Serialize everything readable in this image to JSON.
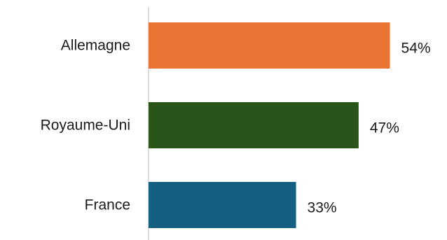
{
  "chart_data": {
    "type": "bar",
    "orientation": "horizontal",
    "categories": [
      "Allemagne",
      "Royaume-Uni",
      "France"
    ],
    "values": [
      54,
      47,
      33
    ],
    "value_labels": [
      "54%",
      "47%",
      "33%"
    ],
    "colors": [
      "#E97434",
      "#2B5418",
      "#155F82"
    ],
    "xlim": [
      0,
      100
    ],
    "grid": false,
    "legend": "none",
    "title": "",
    "xlabel": "",
    "ylabel": ""
  }
}
